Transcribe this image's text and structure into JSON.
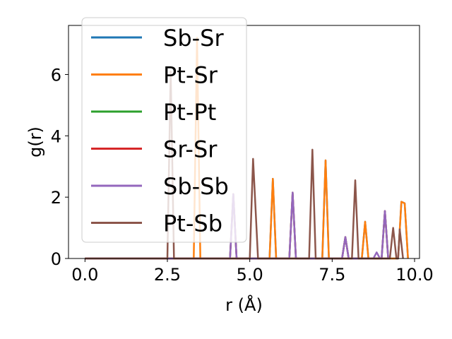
{
  "chart_data": {
    "type": "line",
    "title": "",
    "xlabel": "r (Å)",
    "ylabel": "g(r)",
    "xlim": [
      -0.5,
      10.15
    ],
    "ylim": [
      0,
      7.6
    ],
    "xticks": [
      0.0,
      2.5,
      5.0,
      7.5,
      10.0
    ],
    "xtick_labels": [
      "0.0",
      "2.5",
      "5.0",
      "7.5",
      "10.0"
    ],
    "yticks": [
      0,
      2,
      4,
      6
    ],
    "ytick_labels": [
      "0",
      "2",
      "4",
      "6"
    ],
    "grid": false,
    "legend_position": "upper-left",
    "series": [
      {
        "name": "Sb-Sr",
        "color": "#1f77b4",
        "x": [
          0.0,
          5.6,
          5.7,
          5.8,
          7.2,
          7.3,
          7.4,
          8.4,
          8.5,
          8.6,
          9.5,
          9.6,
          9.7,
          9.8
        ],
        "y": [
          0,
          0,
          2.6,
          0,
          0,
          3.2,
          0,
          0,
          1.2,
          0,
          0,
          1.85,
          1.8,
          0
        ]
      },
      {
        "name": "Pt-Sr",
        "color": "#ff7f0e",
        "x": [
          0.0,
          3.3,
          3.4,
          3.5,
          5.6,
          5.7,
          5.8,
          7.2,
          7.3,
          7.4,
          8.4,
          8.5,
          8.6,
          9.5,
          9.6,
          9.7,
          9.8
        ],
        "y": [
          0,
          0,
          7.2,
          0,
          0,
          2.6,
          0,
          0,
          3.2,
          0,
          0,
          1.2,
          0,
          0,
          1.85,
          1.8,
          0
        ]
      },
      {
        "name": "Pt-Pt",
        "color": "#2ca02c",
        "x": [
          0.0,
          4.4,
          4.5,
          4.6,
          6.2,
          6.3,
          6.4,
          7.8,
          7.9,
          8.0,
          9.0,
          9.1,
          9.2
        ],
        "y": [
          0,
          0,
          2.1,
          0,
          0,
          2.15,
          0,
          0,
          0.7,
          0,
          0,
          1.55,
          0
        ]
      },
      {
        "name": "Sr-Sr",
        "color": "#d62728",
        "x": [
          0.0,
          4.4,
          4.5,
          4.6,
          6.2,
          6.3,
          6.4,
          7.8,
          7.9,
          8.0,
          9.0,
          9.1,
          9.2
        ],
        "y": [
          0,
          0,
          2.1,
          0,
          0,
          2.15,
          0,
          0,
          0.7,
          0,
          0,
          1.55,
          0
        ]
      },
      {
        "name": "Sb-Sb",
        "color": "#9467bd",
        "x": [
          0.0,
          4.4,
          4.5,
          4.6,
          6.2,
          6.3,
          6.4,
          7.8,
          7.9,
          8.0,
          8.75,
          8.85,
          8.95,
          9.0,
          9.1,
          9.2
        ],
        "y": [
          0,
          0,
          2.1,
          0,
          0,
          2.15,
          0,
          0,
          0.7,
          0,
          0,
          0.2,
          0,
          0,
          1.55,
          0
        ]
      },
      {
        "name": "Pt-Sb",
        "color": "#8c564b",
        "x": [
          0.0,
          2.5,
          2.6,
          2.7,
          5.0,
          5.1,
          5.25,
          6.8,
          6.9,
          7.0,
          8.1,
          8.2,
          8.3,
          9.25,
          9.35,
          9.45,
          9.5,
          9.55,
          9.65
        ],
        "y": [
          0,
          0,
          6.1,
          0,
          0,
          3.25,
          0,
          0,
          3.55,
          0,
          0,
          2.55,
          0,
          0,
          1.0,
          0,
          0,
          0.95,
          0
        ]
      }
    ]
  }
}
